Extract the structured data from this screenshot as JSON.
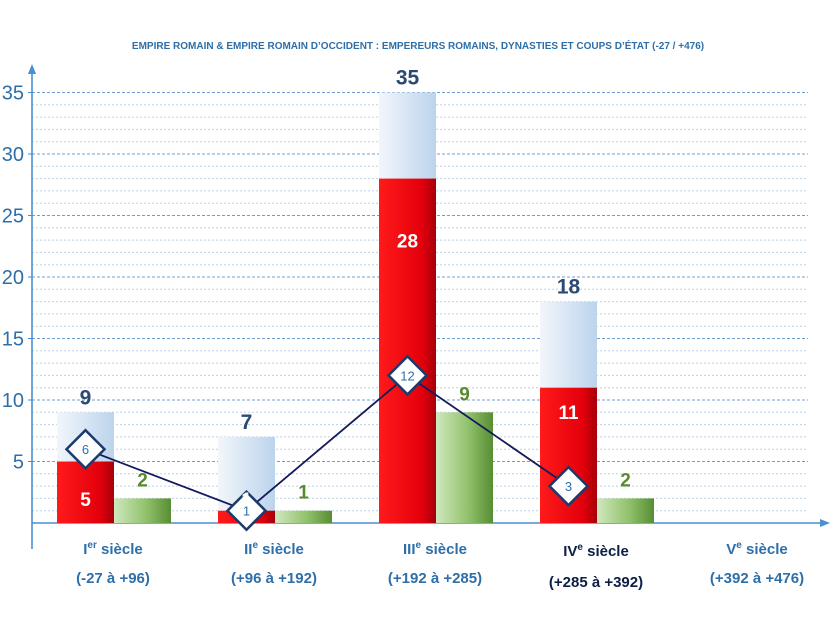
{
  "chart_data": {
    "type": "bar",
    "title": "EMPIRE ROMAIN & EMPIRE ROMAIN D’OCCIDENT : EMPEREURS ROMAINS, DYNASTIES ET COUPS D’ÉTAT (-27 / +476)",
    "categories": [
      {
        "main": "I",
        "sup": "er",
        "rest": " siècle",
        "range": "(-27 à +96)"
      },
      {
        "main": "II",
        "sup": "e",
        "rest": " siècle",
        "range": "(+96 à +192)"
      },
      {
        "main": "III",
        "sup": "e",
        "rest": " siècle",
        "range": "(+192 à +285)"
      },
      {
        "main": "IV",
        "sup": "e",
        "rest": " siècle",
        "range": "(+285 à +392)"
      },
      {
        "main": "V",
        "sup": "e",
        "rest": " siècle",
        "range": "(+392 à +476)"
      }
    ],
    "series": [
      {
        "values": [
          9,
          7,
          35,
          18,
          null
        ]
      },
      {
        "values": [
          5,
          1,
          28,
          11,
          null
        ]
      },
      {
        "values": [
          2,
          1,
          9,
          2,
          null
        ]
      },
      {
        "values": [
          6,
          1,
          12,
          3,
          null
        ]
      }
    ],
    "ylim": [
      0,
      35
    ],
    "yticks": [
      5,
      10,
      15,
      20,
      25,
      30,
      35
    ],
    "grid": true,
    "colors": {
      "total_top": "#c9dcef",
      "usurp": "#e8000e",
      "dynasties": "#7fb35a",
      "line": "#141a5c",
      "axis": "#4a8fd0",
      "marker_border": "#1c3a6a"
    }
  }
}
